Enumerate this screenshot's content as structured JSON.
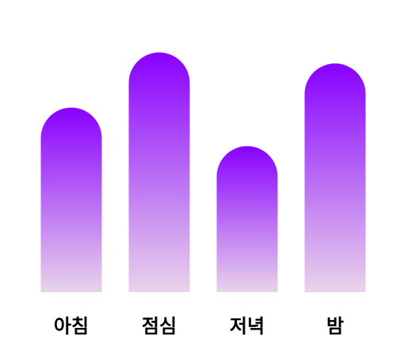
{
  "chart_data": {
    "type": "bar",
    "categories": [
      "아침",
      "점심",
      "저녁",
      "밤"
    ],
    "values": [
      67,
      87,
      53,
      83
    ],
    "ylim": [
      0,
      100
    ],
    "title": "",
    "xlabel": "",
    "ylabel": "",
    "grid": false,
    "legend": "none",
    "gradient": {
      "top": "#8800ff",
      "bottom": "#e8d4ea"
    }
  }
}
